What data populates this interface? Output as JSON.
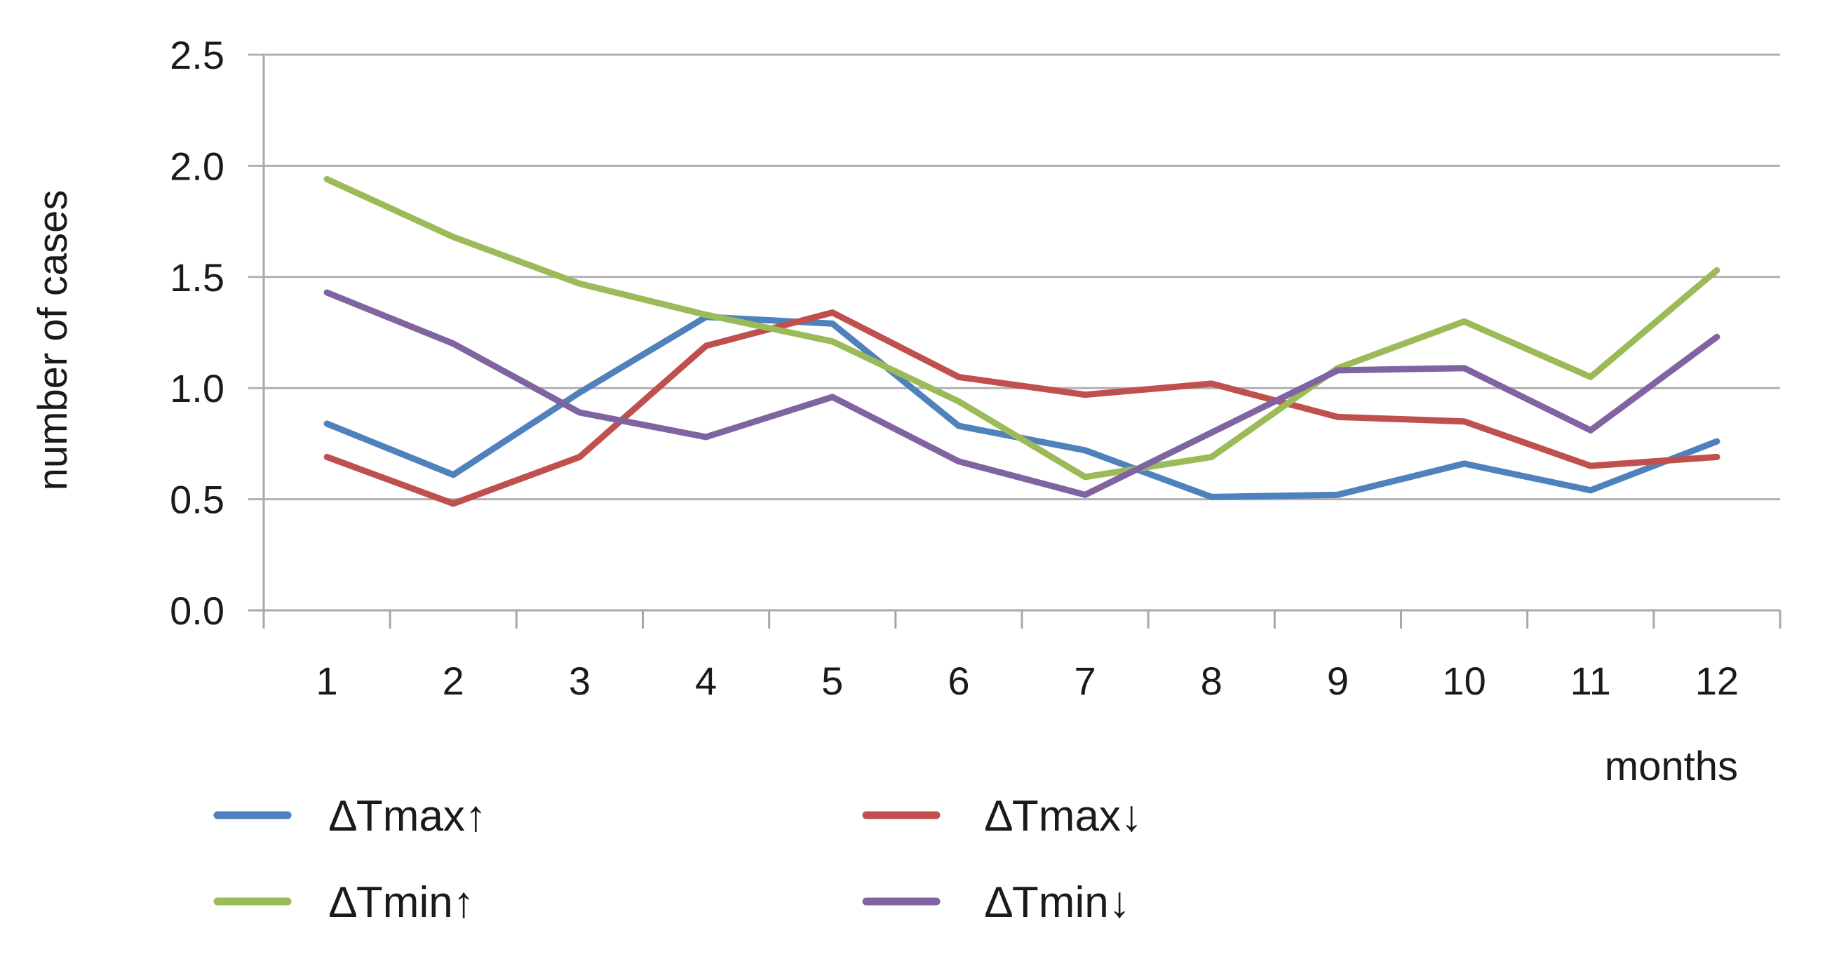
{
  "chart_data": {
    "type": "line",
    "title": "",
    "xlabel": "months",
    "ylabel": "number of cases",
    "categories": [
      "1",
      "2",
      "3",
      "4",
      "5",
      "6",
      "7",
      "8",
      "9",
      "10",
      "11",
      "12"
    ],
    "ylim": [
      0.0,
      2.5
    ],
    "yticks": [
      "0.0",
      "0.5",
      "1.0",
      "1.5",
      "2.0",
      "2.5"
    ],
    "grid": true,
    "legend_position": "bottom",
    "series": [
      {
        "name": "∆Tmax↑",
        "color": "#4F81BD",
        "values": [
          0.84,
          0.61,
          0.98,
          1.32,
          1.29,
          0.83,
          0.72,
          0.51,
          0.52,
          0.66,
          0.54,
          0.76
        ]
      },
      {
        "name": "∆Tmax↓",
        "color": "#C0504D",
        "values": [
          0.69,
          0.48,
          0.69,
          1.19,
          1.34,
          1.05,
          0.97,
          1.02,
          0.87,
          0.85,
          0.65,
          0.69
        ]
      },
      {
        "name": "∆Tmin↑",
        "color": "#9BBB59",
        "values": [
          1.94,
          1.68,
          1.47,
          1.33,
          1.21,
          0.94,
          0.6,
          0.69,
          1.09,
          1.3,
          1.05,
          1.53
        ]
      },
      {
        "name": "∆Tmin↓",
        "color": "#8064A2",
        "values": [
          1.43,
          1.2,
          0.89,
          0.78,
          0.96,
          0.67,
          0.52,
          0.8,
          1.08,
          1.09,
          0.81,
          1.23
        ]
      }
    ]
  }
}
